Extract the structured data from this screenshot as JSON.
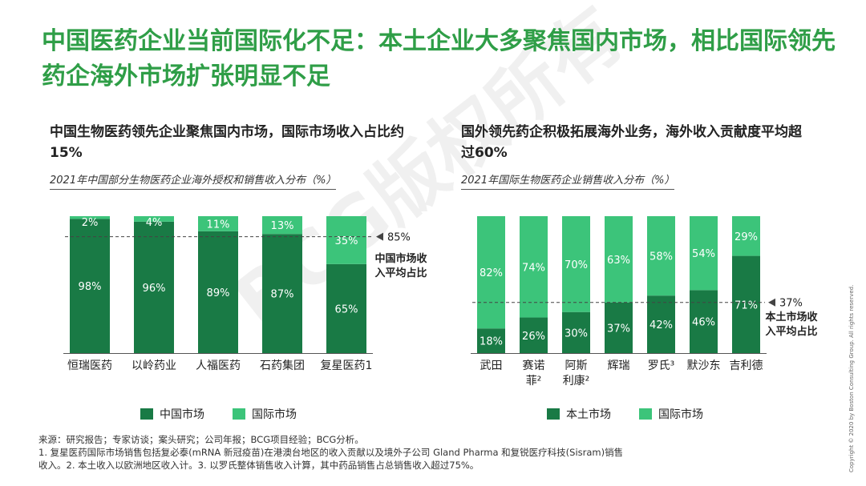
{
  "title": "中国医药企业当前国际化不足：本土企业大多聚焦国内市场，相比国际领先药企海外市场扩张明显不足",
  "left_panel": {
    "subtitle": "中国生物医药领先企业聚焦国内市场，国际市场收入占比约15%",
    "chart_title": "2021年中国部分生物医药企业海外授权和销售收入分布（%）"
  },
  "right_panel": {
    "subtitle": "国外领先药企积极拓展海外业务，海外收入贡献度平均超过60%",
    "chart_title": "2021年国际生物医药企业销售收入分布（%）"
  },
  "colors": {
    "dark": "#197a45",
    "light": "#3cc47a",
    "title": "#2f9e47"
  },
  "chart_data": [
    {
      "type": "bar",
      "stacked": true,
      "categories": [
        "恒瑞医药",
        "以岭药业",
        "人福医药",
        "石药集团",
        "复星医药"
      ],
      "category_superscripts": [
        "",
        "",
        "",
        "",
        "1"
      ],
      "series": [
        {
          "name": "中国市场",
          "values": [
            98,
            96,
            89,
            87,
            65
          ],
          "labels": [
            "98%",
            "96%",
            "89%",
            "87%",
            "65%"
          ]
        },
        {
          "name": "国际市场",
          "values": [
            2,
            4,
            11,
            13,
            35
          ],
          "labels": [
            "2%",
            "4%",
            "11%",
            "13%",
            "35%"
          ]
        }
      ],
      "ylim": [
        0,
        100
      ],
      "reference_line": {
        "value": 85,
        "label": "85%",
        "annotation": [
          "中国市场收",
          "入平均占比"
        ]
      },
      "legend_position": "bottom"
    },
    {
      "type": "bar",
      "stacked": true,
      "categories": [
        "武田",
        "赛诺菲",
        "阿斯利康",
        "辉瑞",
        "罗氏",
        "默沙东",
        "吉利德"
      ],
      "category_lines": [
        [
          "武田"
        ],
        [
          "赛诺",
          "菲²"
        ],
        [
          "阿斯",
          "利康²"
        ],
        [
          "辉瑞"
        ],
        [
          "罗氏³"
        ],
        [
          "默沙东"
        ],
        [
          "吉利德"
        ]
      ],
      "series": [
        {
          "name": "本土市场",
          "values": [
            18,
            26,
            30,
            37,
            42,
            46,
            71
          ],
          "labels": [
            "18%",
            "26%",
            "30%",
            "37%",
            "42%",
            "46%",
            "71%"
          ]
        },
        {
          "name": "国际市场",
          "values": [
            82,
            74,
            70,
            63,
            58,
            54,
            29
          ],
          "labels": [
            "82%",
            "74%",
            "70%",
            "63%",
            "58%",
            "54%",
            "29%"
          ]
        }
      ],
      "ylim": [
        0,
        100
      ],
      "reference_line": {
        "value": 37,
        "label": "37%",
        "annotation": [
          "本土市场收",
          "入平均占比"
        ]
      },
      "legend_position": "bottom"
    }
  ],
  "footnotes": {
    "source": "来源：研究报告；专家访谈；案头研究；公司年报；BCG项目经验；BCG分析。",
    "note1": "1. 复星医药国际市场销售包括复必泰(mRNA 新冠疫苗)在港澳台地区的收入贡献以及境外子公司 Gland Pharma 和复锐医疗科技(Sisram)销售",
    "note2": "收入。2. 本土收入以欧洲地区收入计。3. 以罗氏整体销售收入计算，其中药品销售占总销售收入超过75%。"
  },
  "copyright": "Copyright © 2020 by Boston Consulting Group. All rights reserved.",
  "watermark": "BCG版权所有"
}
